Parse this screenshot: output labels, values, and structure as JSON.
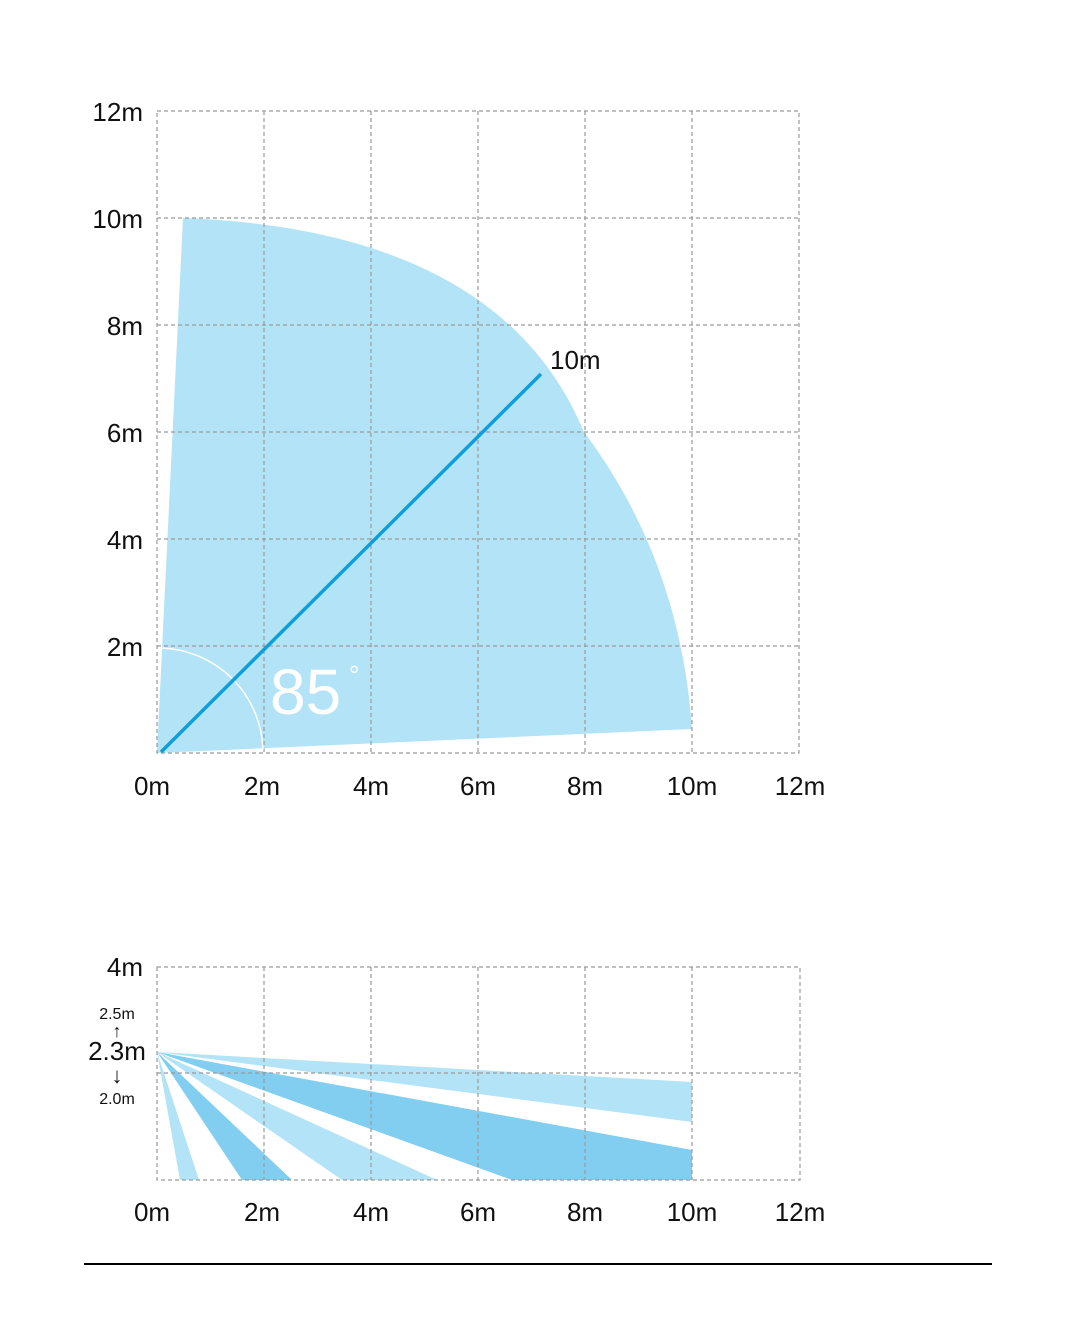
{
  "colors": {
    "coverage_light": "#b3e3f6",
    "coverage_medium": "#81cef0",
    "axis_line": "#0e9fd8",
    "grid": "#9a9a9a"
  },
  "top_view": {
    "x_ticks": [
      "0m",
      "2m",
      "4m",
      "6m",
      "8m",
      "10m",
      "12m"
    ],
    "y_ticks": [
      "12m",
      "10m",
      "8m",
      "6m",
      "4m",
      "2m"
    ],
    "range_label": "10m",
    "angle_label": "85",
    "degree_symbol": "°"
  },
  "side_view": {
    "x_ticks": [
      "0m",
      "2m",
      "4m",
      "6m",
      "8m",
      "10m",
      "12m"
    ],
    "y_top_label": "4m",
    "mount_height_label": "2.3m",
    "mount_max_label": "2.5m",
    "mount_min_label": "2.0m",
    "up_arrow": "↑",
    "down_arrow": "↓"
  },
  "chart_data": [
    {
      "type": "area",
      "view": "top",
      "xlim": [
        0,
        12
      ],
      "ylim": [
        0,
        12
      ],
      "x_ticks": [
        "0m",
        "2m",
        "4m",
        "6m",
        "8m",
        "10m",
        "12m"
      ],
      "y_ticks": [
        "2m",
        "4m",
        "6m",
        "8m",
        "10m",
        "12m"
      ],
      "detection_range_m": 10,
      "detection_angle_deg": 85,
      "annotations": [
        "10m",
        "85°"
      ]
    },
    {
      "type": "area",
      "view": "side",
      "xlim": [
        0,
        12
      ],
      "ylim": [
        0,
        4
      ],
      "x_ticks": [
        "0m",
        "2m",
        "4m",
        "6m",
        "8m",
        "10m",
        "12m"
      ],
      "y_ticks": [
        "4m"
      ],
      "mount_height_m": 2.3,
      "mount_height_range_m": [
        2.0,
        2.5
      ],
      "annotations": [
        "2.5m",
        "2.3m",
        "2.0m"
      ]
    }
  ]
}
